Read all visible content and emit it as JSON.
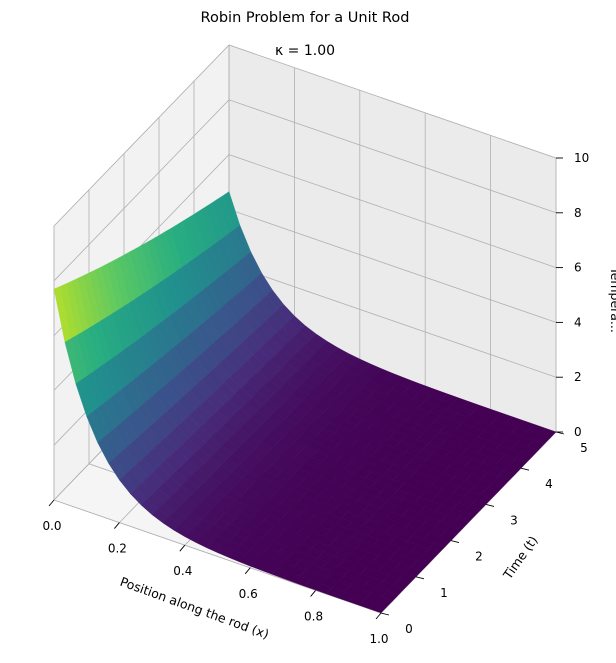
{
  "chart_data": {
    "type": "surface",
    "title": "Robin Problem for a Unit Rod",
    "subtitle": "κ = 1.00",
    "xlabel": "Position along the rod (x)",
    "ylabel": "Time (t)",
    "zlabel": "Tempera...",
    "xlim": [
      0,
      1
    ],
    "ylim": [
      0,
      5
    ],
    "zlim": [
      0,
      10
    ],
    "xticks": [
      "0.0",
      "0.2",
      "0.4",
      "0.6",
      "0.8",
      "1.0"
    ],
    "yticks": [
      "0",
      "1",
      "2",
      "3",
      "4",
      "5"
    ],
    "zticks": [
      "0",
      "2",
      "4",
      "6",
      "8",
      "10"
    ],
    "colormap": "viridis",
    "grid": true,
    "surface_edges": {
      "t0_profile": {
        "x": [
          0.0,
          0.1,
          0.2,
          0.3,
          0.4,
          0.5,
          0.6,
          0.7,
          0.8,
          0.9,
          1.0
        ],
        "temperature": [
          7.7,
          4.1,
          2.0,
          0.95,
          0.42,
          0.18,
          0.08,
          0.04,
          0.02,
          0.01,
          0.0
        ]
      },
      "x0_boundary": {
        "t": [
          0,
          1,
          2,
          3,
          4,
          5
        ],
        "temperature": [
          7.7,
          7.0,
          6.3,
          5.6,
          4.9,
          4.2
        ]
      }
    }
  }
}
